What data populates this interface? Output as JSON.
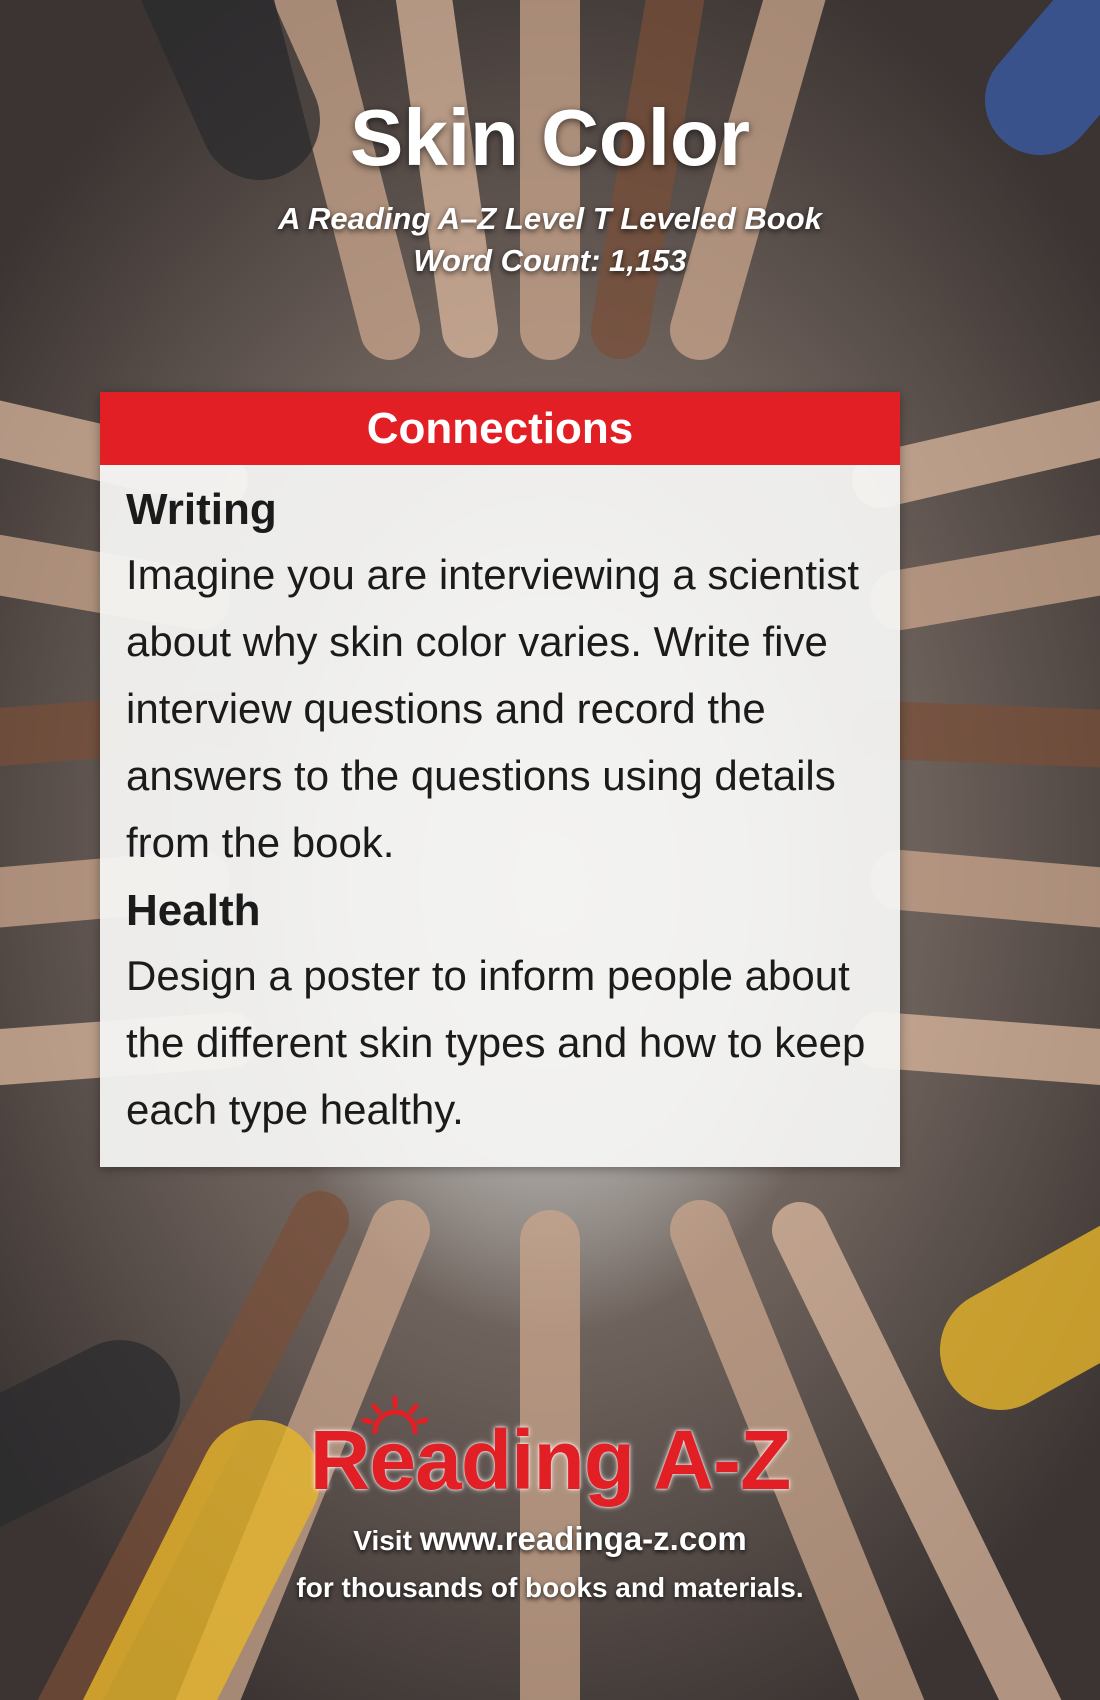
{
  "book": {
    "title": "Skin Color",
    "subtitle": "A Reading A–Z Level T Leveled Book",
    "word_count": "Word Count: 1,153"
  },
  "card": {
    "header": "Connections",
    "sections": [
      {
        "title": "Writing",
        "text": "Imagine you are interviewing a scientist about why skin color varies. Write five interview questions and record the answers to the questions using details from the book."
      },
      {
        "title": "Health",
        "text": "Design a poster to inform people about the different skin types and how to keep each type healthy."
      }
    ]
  },
  "footer": {
    "logo": "Reading A-Z",
    "visit_prefix": "Visit",
    "url": "www.readinga-z.com",
    "tagline": "for thousands of books and materials."
  },
  "colors": {
    "accent_red": "#e11f25",
    "card_bg": "#f5f5f4",
    "text_dark": "#1b1b1b"
  }
}
